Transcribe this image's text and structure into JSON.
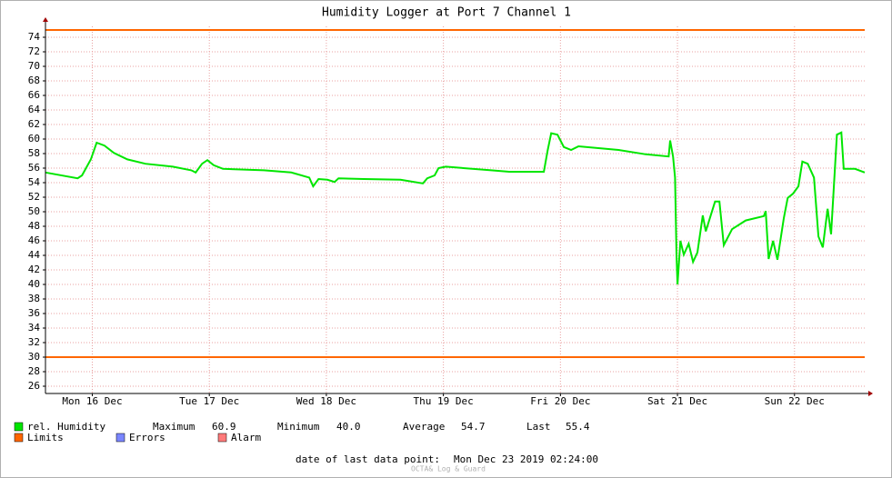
{
  "chart_data": {
    "type": "line",
    "title": "Humidity Logger at Port 7 Channel 1",
    "xlim": [
      2.4,
      170.4
    ],
    "xticks": [
      {
        "value": 12,
        "label": "Mon 16 Dec"
      },
      {
        "value": 36,
        "label": "Tue 17 Dec"
      },
      {
        "value": 60,
        "label": "Wed 18 Dec"
      },
      {
        "value": 84,
        "label": "Thu 19 Dec"
      },
      {
        "value": 108,
        "label": "Fri 20 Dec"
      },
      {
        "value": 132,
        "label": "Sat 21 Dec"
      },
      {
        "value": 156,
        "label": "Sun 22 Dec"
      }
    ],
    "ylim": [
      25,
      75.5
    ],
    "yticks": [
      26,
      28,
      30,
      32,
      34,
      36,
      38,
      40,
      42,
      44,
      46,
      48,
      50,
      52,
      54,
      56,
      58,
      60,
      62,
      64,
      66,
      68,
      70,
      72,
      74
    ],
    "grid": true,
    "series": [
      {
        "name": "rel. Humidity",
        "color": "#00e600",
        "x": [
          2.4,
          9.0,
          9.9,
          11.7,
          12.9,
          14.5,
          16.4,
          19.2,
          22.9,
          28.5,
          32.3,
          33.2,
          34.5,
          35.6,
          36.9,
          38.8,
          47.2,
          52.8,
          56.5,
          57.3,
          58.4,
          60.2,
          61.7,
          62.5,
          67.7,
          75.2,
          79.8,
          80.7,
          82.2,
          83.0,
          84.5,
          93.8,
          97.5,
          104.6,
          105.4,
          106.1,
          107.4,
          108.7,
          110.2,
          111.7,
          119.9,
          125.5,
          130.2,
          130.5,
          131.1,
          131.5,
          131.8,
          132.0,
          132.6,
          133.3,
          134.3,
          135.2,
          136.1,
          137.2,
          137.8,
          139.7,
          140.6,
          141.5,
          143.2,
          146.0,
          149.7,
          150.1,
          150.7,
          151.6,
          152.5,
          153.8,
          154.6,
          155.7,
          156.8,
          157.6,
          158.7,
          160.0,
          160.9,
          161.8,
          162.8,
          163.5,
          164.7,
          165.6,
          166.1,
          168.4,
          170.4
        ],
        "values": [
          55.4,
          54.6,
          55,
          57.2,
          59.5,
          59.1,
          58.1,
          57.2,
          56.6,
          56.2,
          55.7,
          55.4,
          56.6,
          57.1,
          56.4,
          55.9,
          55.7,
          55.4,
          54.7,
          53.5,
          54.5,
          54.4,
          54.1,
          54.6,
          54.5,
          54.4,
          53.9,
          54.6,
          55,
          56,
          56.2,
          55.7,
          55.5,
          55.5,
          58.5,
          60.8,
          60.6,
          58.9,
          58.5,
          59,
          58.5,
          57.9,
          57.6,
          59.8,
          57.6,
          54.7,
          44.1,
          40,
          46,
          44.1,
          45.6,
          43.1,
          44.4,
          49.5,
          47.3,
          51.4,
          51.4,
          45.4,
          47.6,
          48.8,
          49.4,
          50.1,
          43.5,
          46,
          43.4,
          49.1,
          51.9,
          52.5,
          53.5,
          56.9,
          56.6,
          54.7,
          46.6,
          45.1,
          50.4,
          46.9,
          60.6,
          60.9,
          55.9,
          55.9,
          55.4
        ]
      }
    ],
    "stats": [
      {
        "name": "Maximum",
        "value": 60.9
      },
      {
        "name": "Minimum",
        "value": {
          "value": 40,
          "label": "40.0"
        }
      },
      {
        "name": "Average",
        "value": 54.7
      },
      {
        "name": "Last",
        "value": 55.4
      }
    ],
    "limits": {
      "name": "Limits",
      "color": "#ff6600",
      "values": [
        75,
        30
      ]
    },
    "legend_extra": [
      {
        "name": "Errors",
        "color": "#7a86ff"
      },
      {
        "name": "Alarm",
        "color": "#ff7a7a"
      }
    ],
    "last_data_point": {
      "label": "date of last data point:",
      "value": "Mon Dec 23 2019 02:24:00"
    },
    "watermark": "OCTA& Log & Guard"
  }
}
